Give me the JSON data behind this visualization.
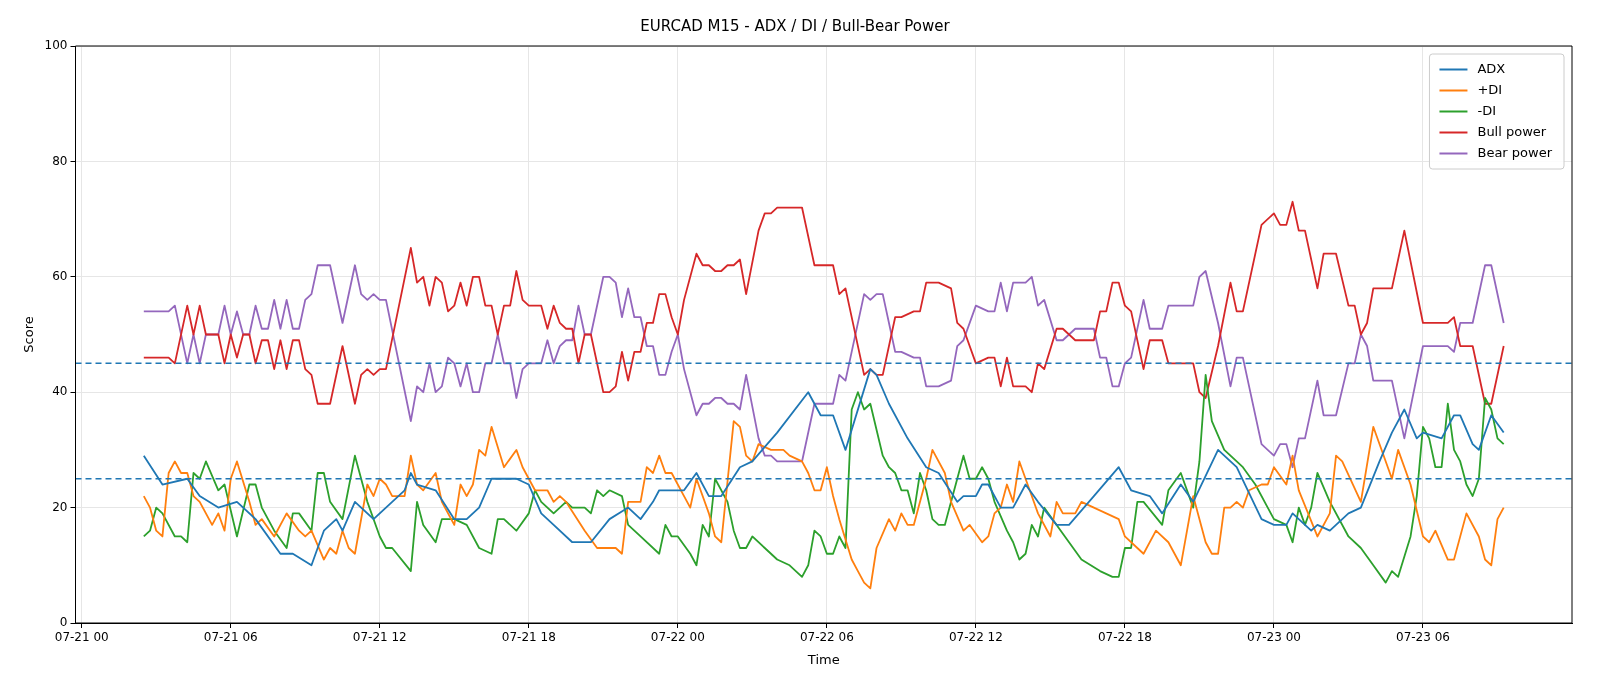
{
  "chart_data": {
    "type": "line",
    "title": "EURCAD M15 - ADX / DI / Bull-Bear Power",
    "xlabel": "Time",
    "ylabel": "Score",
    "xlim": [
      "--07-20T23:45",
      "--07-23T12:00"
    ],
    "xticks": [
      {
        "value": "--07-21T00:00",
        "label": "07-21 00"
      },
      {
        "value": "--07-21T06:00",
        "label": "07-21 06"
      },
      {
        "value": "--07-21T12:00",
        "label": "07-21 12"
      },
      {
        "value": "--07-21T18:00",
        "label": "07-21 18"
      },
      {
        "value": "--07-22T00:00",
        "label": "07-22 00"
      },
      {
        "value": "--07-22T06:00",
        "label": "07-22 06"
      },
      {
        "value": "--07-22T12:00",
        "label": "07-22 12"
      },
      {
        "value": "--07-22T18:00",
        "label": "07-22 18"
      },
      {
        "value": "--07-23T00:00",
        "label": "07-23 00"
      },
      {
        "value": "--07-23T06:00",
        "label": "07-23 06"
      }
    ],
    "ylim": [
      0,
      100
    ],
    "yticks": [
      0,
      20,
      40,
      60,
      80,
      100
    ],
    "grid": true,
    "legend": "top right",
    "marker": "none",
    "line_style": "solid",
    "ref_lines": [
      {
        "axis": "y",
        "value": 45,
        "color": "#1f77b4",
        "line_style": "dashed"
      },
      {
        "axis": "y",
        "value": 25,
        "color": "#1f77b4",
        "line_style": "dashed"
      }
    ],
    "x": [
      "--07-21T02:30",
      "--07-21T03:00",
      "--07-21T03:15",
      "--07-21T03:30",
      "--07-21T03:45",
      "--07-21T04:15",
      "--07-21T04:30",
      "--07-21T04:45",
      "--07-21T05:00",
      "--07-21T05:30",
      "--07-21T05:45",
      "--07-21T06:00",
      "--07-21T06:15",
      "--07-21T06:30",
      "--07-21T06:45",
      "--07-21T07:00",
      "--07-21T07:15",
      "--07-21T07:30",
      "--07-21T07:45",
      "--07-21T08:00",
      "--07-21T08:15",
      "--07-21T08:30",
      "--07-21T08:45",
      "--07-21T09:00",
      "--07-21T09:15",
      "--07-21T09:30",
      "--07-21T10:00",
      "--07-21T10:30",
      "--07-21T11:00",
      "--07-21T11:15",
      "--07-21T11:30",
      "--07-21T11:45",
      "--07-21T12:00",
      "--07-21T12:15",
      "--07-21T13:15",
      "--07-21T13:30",
      "--07-21T13:45",
      "--07-21T14:00",
      "--07-21T14:15",
      "--07-21T14:30",
      "--07-21T14:45",
      "--07-21T15:00",
      "--07-21T15:15",
      "--07-21T15:30",
      "--07-21T15:45",
      "--07-21T16:00",
      "--07-21T16:15",
      "--07-21T16:30",
      "--07-21T16:45",
      "--07-21T17:00",
      "--07-21T17:15",
      "--07-21T17:30",
      "--07-21T17:45",
      "--07-21T18:00",
      "--07-21T18:30",
      "--07-21T18:45",
      "--07-21T19:00",
      "--07-21T19:15",
      "--07-21T19:30",
      "--07-21T19:45",
      "--07-21T20:00",
      "--07-21T20:15",
      "--07-21T20:30",
      "--07-21T21:00",
      "--07-21T21:15",
      "--07-21T21:30",
      "--07-21T21:45",
      "--07-21T22:00",
      "--07-21T22:15",
      "--07-21T22:30",
      "--07-21T22:45",
      "--07-21T23:00",
      "--07-21T23:15",
      "--07-21T23:30",
      "--07-21T23:45",
      "--07-22T00:00",
      "--07-22T00:15",
      "--07-22T00:45",
      "--07-22T01:00",
      "--07-22T01:15",
      "--07-22T01:30",
      "--07-22T01:45",
      "--07-22T02:00",
      "--07-22T02:15",
      "--07-22T02:30",
      "--07-22T02:45",
      "--07-22T03:15",
      "--07-22T03:30",
      "--07-22T03:45",
      "--07-22T04:00",
      "--07-22T04:15",
      "--07-22T04:30",
      "--07-22T04:45",
      "--07-22T05:00",
      "--07-22T05:30",
      "--07-22T06:15",
      "--07-22T06:30",
      "--07-22T06:45",
      "--07-22T07:30",
      "--07-22T07:45",
      "--07-22T08:00",
      "--07-22T08:15",
      "--07-22T08:45",
      "--07-22T09:00",
      "--07-22T09:30",
      "--07-22T09:45",
      "--07-22T10:00",
      "--07-22T10:30",
      "--07-22T11:00",
      "--07-22T11:15",
      "--07-22T11:30",
      "--07-22T12:00",
      "--07-22T12:30",
      "--07-22T12:45",
      "--07-22T13:00",
      "--07-22T13:15",
      "--07-22T13:30",
      "--07-22T14:00",
      "--07-22T14:15",
      "--07-22T14:30",
      "--07-22T14:45",
      "--07-22T15:15",
      "--07-22T15:30",
      "--07-22T15:45",
      "--07-22T16:00",
      "--07-22T16:15",
      "--07-22T16:30",
      "--07-22T16:45",
      "--07-22T17:00",
      "--07-22T17:15",
      "--07-22T17:30",
      "--07-22T17:45",
      "--07-22T18:00",
      "--07-22T18:15",
      "--07-22T18:45",
      "--07-22T19:00",
      "--07-22T19:30",
      "--07-22T19:45",
      "--07-22T20:15",
      "--07-22T20:30",
      "--07-22T20:45",
      "--07-22T21:00",
      "--07-22T21:15",
      "--07-22T21:45",
      "--07-22T22:15",
      "--07-22T22:30",
      "--07-22T22:45",
      "--07-22T23:30",
      "--07-23T00:00",
      "--07-23T00:15",
      "--07-23T00:30",
      "--07-23T00:45",
      "--07-23T01:00",
      "--07-23T01:15",
      "--07-23T01:45",
      "--07-23T02:00",
      "--07-23T02:15",
      "--07-23T02:30",
      "--07-23T03:00",
      "--07-23T03:15",
      "--07-23T03:30",
      "--07-23T03:45",
      "--07-23T04:00",
      "--07-23T04:45",
      "--07-23T05:15",
      "--07-23T06:00",
      "--07-23T06:30",
      "--07-23T06:45",
      "--07-23T07:00",
      "--07-23T07:15",
      "--07-23T07:30",
      "--07-23T08:00",
      "--07-23T08:30",
      "--07-23T08:45",
      "--07-23T09:15"
    ],
    "series": [
      {
        "name": "ADX",
        "color": "#1f77b4",
        "x": [
          "--07-21T02:30",
          "--07-21T03:15",
          "--07-21T04:15",
          "--07-21T04:45",
          "--07-21T05:30",
          "--07-21T06:15",
          "--07-21T07:00",
          "--07-21T08:00",
          "--07-21T08:30",
          "--07-21T09:15",
          "--07-21T09:45",
          "--07-21T10:15",
          "--07-21T10:30",
          "--07-21T11:00",
          "--07-21T11:45",
          "--07-21T12:15",
          "--07-21T13:00",
          "--07-21T13:15",
          "--07-21T13:30",
          "--07-21T14:15",
          "--07-21T15:00",
          "--07-21T15:30",
          "--07-21T16:00",
          "--07-21T16:30",
          "--07-21T17:00",
          "--07-21T17:30",
          "--07-21T18:00",
          "--07-21T18:30",
          "--07-21T19:00",
          "--07-21T19:45",
          "--07-21T20:30",
          "--07-21T21:15",
          "--07-21T22:00",
          "--07-21T22:30",
          "--07-21T23:00",
          "--07-21T23:15",
          "--07-22T00:15",
          "--07-22T00:45",
          "--07-22T01:15",
          "--07-22T01:45",
          "--07-22T02:30",
          "--07-22T03:00",
          "--07-22T04:00",
          "--07-22T05:15",
          "--07-22T05:45",
          "--07-22T06:15",
          "--07-22T06:45",
          "--07-22T07:45",
          "--07-22T08:00",
          "--07-22T08:30",
          "--07-22T09:15",
          "--07-22T10:00",
          "--07-22T10:30",
          "--07-22T11:15",
          "--07-22T11:30",
          "--07-22T12:00",
          "--07-22T12:15",
          "--07-22T12:30",
          "--07-22T13:00",
          "--07-22T13:30",
          "--07-22T14:00",
          "--07-22T14:30",
          "--07-22T15:15",
          "--07-22T15:45",
          "--07-22T16:45",
          "--07-22T17:45",
          "--07-22T18:15",
          "--07-22T19:00",
          "--07-22T19:30",
          "--07-22T20:15",
          "--07-22T20:45",
          "--07-22T21:45",
          "--07-22T22:30",
          "--07-22T23:30",
          "--07-23T00:00",
          "--07-23T00:30",
          "--07-23T00:45",
          "--07-23T01:30",
          "--07-23T01:45",
          "--07-23T02:15",
          "--07-23T03:00",
          "--07-23T03:30",
          "--07-23T04:15",
          "--07-23T04:45",
          "--07-23T05:15",
          "--07-23T05:45",
          "--07-23T06:00",
          "--07-23T06:45",
          "--07-23T07:15",
          "--07-23T07:30",
          "--07-23T08:00",
          "--07-23T08:15",
          "--07-23T08:45",
          "--07-23T09:15"
        ],
        "values": [
          29,
          24,
          25,
          22,
          20,
          21,
          18,
          12,
          12,
          10,
          16,
          18,
          16,
          21,
          18,
          20,
          23,
          26,
          24,
          23,
          18,
          18,
          20,
          25,
          25,
          25,
          24,
          19,
          17,
          14,
          14,
          18,
          20,
          18,
          21,
          23,
          23,
          26,
          22,
          22,
          27,
          28,
          33,
          40,
          36,
          36,
          30,
          44,
          43,
          38,
          32,
          27,
          26,
          21,
          22,
          22,
          24,
          24,
          20,
          20,
          24,
          21,
          17,
          17,
          22,
          27,
          23,
          22,
          19,
          24,
          21,
          30,
          27,
          18,
          17,
          17,
          19,
          16,
          17,
          16,
          19,
          20,
          28,
          33,
          37,
          32,
          33,
          32,
          36,
          36,
          31,
          30,
          36,
          33
        ]
      },
      {
        "name": "+DI",
        "color": "#ff7f0e",
        "x": [
          "--07-21T02:30",
          "--07-21T02:45",
          "--07-21T03:00",
          "--07-21T03:15",
          "--07-21T03:30",
          "--07-21T03:45",
          "--07-21T04:00",
          "--07-21T04:15",
          "--07-21T04:30",
          "--07-21T04:45",
          "--07-21T05:15",
          "--07-21T05:30",
          "--07-21T05:45",
          "--07-21T06:00",
          "--07-21T06:15",
          "--07-21T06:45",
          "--07-21T07:00",
          "--07-21T07:15",
          "--07-21T07:45",
          "--07-21T08:15",
          "--07-21T08:45",
          "--07-21T09:00",
          "--07-21T09:15",
          "--07-21T09:45",
          "--07-21T10:00",
          "--07-21T10:15",
          "--07-21T10:30",
          "--07-21T10:45",
          "--07-21T11:00",
          "--07-21T11:30",
          "--07-21T11:45",
          "--07-21T12:00",
          "--07-21T12:15",
          "--07-21T12:30",
          "--07-21T13:00",
          "--07-21T13:15",
          "--07-21T13:30",
          "--07-21T13:45",
          "--07-21T14:15",
          "--07-21T14:30",
          "--07-21T15:00",
          "--07-21T15:15",
          "--07-21T15:30",
          "--07-21T15:45",
          "--07-21T16:00",
          "--07-21T16:15",
          "--07-21T16:30",
          "--07-21T17:00",
          "--07-21T17:30",
          "--07-21T17:45",
          "--07-21T18:15",
          "--07-21T18:45",
          "--07-21T19:00",
          "--07-21T19:15",
          "--07-21T19:30",
          "--07-21T20:15",
          "--07-21T20:45",
          "--07-21T21:15",
          "--07-21T21:30",
          "--07-21T21:45",
          "--07-21T22:00",
          "--07-21T22:15",
          "--07-21T22:30",
          "--07-21T22:45",
          "--07-21T23:00",
          "--07-21T23:15",
          "--07-21T23:30",
          "--07-21T23:45",
          "--07-22T00:15",
          "--07-22T00:30",
          "--07-22T00:45",
          "--07-22T01:15",
          "--07-22T01:30",
          "--07-22T01:45",
          "--07-22T02:15",
          "--07-22T02:30",
          "--07-22T02:45",
          "--07-22T03:00",
          "--07-22T03:15",
          "--07-22T03:45",
          "--07-22T04:00",
          "--07-22T04:15",
          "--07-22T04:30",
          "--07-22T05:00",
          "--07-22T05:15",
          "--07-22T05:30",
          "--07-22T05:45",
          "--07-22T06:00",
          "--07-22T06:15",
          "--07-22T06:30",
          "--07-22T07:00",
          "--07-22T07:15",
          "--07-22T07:30",
          "--07-22T07:45",
          "--07-22T08:00",
          "--07-22T08:30",
          "--07-22T08:45",
          "--07-22T09:00",
          "--07-22T09:15",
          "--07-22T09:30",
          "--07-22T10:00",
          "--07-22T10:15",
          "--07-22T10:45",
          "--07-22T11:00",
          "--07-22T11:30",
          "--07-22T11:45",
          "--07-22T12:15",
          "--07-22T12:30",
          "--07-22T12:45",
          "--07-22T13:00",
          "--07-22T13:15",
          "--07-22T13:30",
          "--07-22T13:45",
          "--07-22T14:00",
          "--07-22T14:15",
          "--07-22T14:30",
          "--07-22T15:00",
          "--07-22T15:15",
          "--07-22T15:30",
          "--07-22T16:00",
          "--07-22T16:15",
          "--07-22T16:45",
          "--07-22T17:15",
          "--07-22T17:45",
          "--07-22T18:00",
          "--07-22T18:30",
          "--07-22T18:45",
          "--07-22T19:15",
          "--07-22T19:45",
          "--07-22T20:15",
          "--07-22T20:45",
          "--07-22T21:15",
          "--07-22T21:30",
          "--07-22T21:45",
          "--07-22T22:00",
          "--07-22T22:15",
          "--07-22T22:30",
          "--07-22T22:45",
          "--07-22T23:00",
          "--07-22T23:30",
          "--07-22T23:45",
          "--07-23T00:00",
          "--07-23T00:30",
          "--07-23T00:45",
          "--07-23T01:00",
          "--07-23T01:45",
          "--07-23T02:15",
          "--07-23T02:30",
          "--07-23T02:45",
          "--07-23T03:30",
          "--07-23T04:00",
          "--07-23T04:45",
          "--07-23T05:00",
          "--07-23T05:30",
          "--07-23T06:00",
          "--07-23T06:15",
          "--07-23T06:30",
          "--07-23T07:00",
          "--07-23T07:15",
          "--07-23T07:45",
          "--07-23T08:15",
          "--07-23T08:30",
          "--07-23T08:45",
          "--07-23T09:00",
          "--07-23T09:15"
        ],
        "values": [
          22,
          20,
          16,
          15,
          26,
          28,
          26,
          26,
          22,
          21,
          17,
          19,
          16,
          25,
          28,
          21,
          17,
          18,
          15,
          19,
          16,
          15,
          16,
          11,
          13,
          12,
          16,
          13,
          12,
          24,
          22,
          25,
          24,
          22,
          22,
          29,
          24,
          23,
          26,
          21,
          17,
          24,
          22,
          24,
          30,
          29,
          34,
          27,
          30,
          27,
          23,
          23,
          21,
          22,
          21,
          16,
          13,
          13,
          13,
          12,
          21,
          21,
          21,
          27,
          26,
          29,
          26,
          26,
          22,
          20,
          25,
          19,
          15,
          14,
          35,
          34,
          29,
          28,
          31,
          30,
          30,
          30,
          29,
          28,
          26,
          23,
          23,
          27,
          22,
          18,
          11,
          9,
          7,
          6,
          13,
          18,
          16,
          19,
          17,
          17,
          25,
          30,
          26,
          21,
          16,
          17,
          14,
          15,
          19,
          20,
          24,
          21,
          28,
          25,
          22,
          19,
          15,
          21,
          19,
          19,
          21,
          20,
          19,
          18,
          15,
          13,
          12,
          16,
          14,
          10,
          22,
          14,
          12,
          12,
          20,
          20,
          21,
          20,
          23,
          24,
          24,
          27,
          24,
          29,
          23,
          15,
          19,
          29,
          28,
          21,
          34,
          25,
          30,
          24,
          15,
          14,
          16,
          11,
          11,
          19,
          15,
          11,
          10,
          18,
          20
        ]
      },
      {
        "name": "-DI",
        "color": "#2ca02c",
        "x": [
          "--07-21T02:30",
          "--07-21T02:45",
          "--07-21T03:00",
          "--07-21T03:15",
          "--07-21T03:45",
          "--07-21T04:00",
          "--07-21T04:15",
          "--07-21T04:30",
          "--07-21T04:45",
          "--07-21T05:00",
          "--07-21T05:30",
          "--07-21T05:45",
          "--07-21T06:15",
          "--07-21T06:45",
          "--07-21T07:00",
          "--07-21T07:15",
          "--07-21T07:45",
          "--07-21T08:15",
          "--07-21T08:30",
          "--07-21T08:45",
          "--07-21T09:15",
          "--07-21T09:30",
          "--07-21T09:45",
          "--07-21T10:00",
          "--07-21T10:30",
          "--07-21T11:00",
          "--07-21T11:30",
          "--07-21T12:00",
          "--07-21T12:15",
          "--07-21T12:30",
          "--07-21T13:15",
          "--07-21T13:30",
          "--07-21T13:45",
          "--07-21T14:15",
          "--07-21T14:30",
          "--07-21T15:00",
          "--07-21T15:30",
          "--07-21T16:00",
          "--07-21T16:30",
          "--07-21T16:45",
          "--07-21T17:00",
          "--07-21T17:30",
          "--07-21T18:00",
          "--07-21T18:15",
          "--07-21T18:30",
          "--07-21T19:00",
          "--07-21T19:30",
          "--07-21T19:45",
          "--07-21T20:15",
          "--07-21T20:30",
          "--07-21T20:45",
          "--07-21T21:00",
          "--07-21T21:15",
          "--07-21T21:45",
          "--07-21T22:00",
          "--07-21T22:30",
          "--07-21T23:15",
          "--07-21T23:30",
          "--07-21T23:45",
          "--07-22T00:00",
          "--07-22T00:30",
          "--07-22T00:45",
          "--07-22T01:00",
          "--07-22T01:15",
          "--07-22T01:30",
          "--07-22T02:00",
          "--07-22T02:15",
          "--07-22T02:30",
          "--07-22T02:45",
          "--07-22T03:00",
          "--07-22T03:30",
          "--07-22T04:00",
          "--07-22T04:30",
          "--07-22T05:00",
          "--07-22T05:15",
          "--07-22T05:30",
          "--07-22T05:45",
          "--07-22T06:00",
          "--07-22T06:15",
          "--07-22T06:30",
          "--07-22T06:45",
          "--07-22T07:00",
          "--07-22T07:15",
          "--07-22T07:30",
          "--07-22T07:45",
          "--07-22T08:15",
          "--07-22T08:30",
          "--07-22T08:45",
          "--07-22T09:00",
          "--07-22T09:15",
          "--07-22T09:30",
          "--07-22T09:45",
          "--07-22T10:00",
          "--07-22T10:15",
          "--07-22T10:30",
          "--07-22T10:45",
          "--07-22T11:15",
          "--07-22T11:30",
          "--07-22T11:45",
          "--07-22T12:00",
          "--07-22T12:15",
          "--07-22T12:30",
          "--07-22T12:45",
          "--07-22T13:15",
          "--07-22T13:30",
          "--07-22T13:45",
          "--07-22T14:00",
          "--07-22T14:15",
          "--07-22T14:30",
          "--07-22T14:45",
          "--07-22T15:15",
          "--07-22T15:45",
          "--07-22T16:15",
          "--07-22T17:00",
          "--07-22T17:30",
          "--07-22T17:45",
          "--07-22T18:00",
          "--07-22T18:15",
          "--07-22T18:30",
          "--07-22T18:45",
          "--07-22T19:30",
          "--07-22T19:45",
          "--07-22T20:15",
          "--07-22T20:45",
          "--07-22T21:00",
          "--07-22T21:15",
          "--07-22T21:30",
          "--07-22T22:00",
          "--07-22T22:45",
          "--07-22T23:15",
          "--07-22T23:45",
          "--07-23T00:00",
          "--07-23T00:30",
          "--07-23T00:45",
          "--07-23T01:00",
          "--07-23T01:15",
          "--07-23T01:30",
          "--07-23T01:45",
          "--07-23T02:15",
          "--07-23T03:00",
          "--07-23T03:30",
          "--07-23T04:00",
          "--07-23T04:30",
          "--07-23T04:45",
          "--07-23T05:00",
          "--07-23T05:30",
          "--07-23T05:45",
          "--07-23T06:00",
          "--07-23T06:15",
          "--07-23T06:30",
          "--07-23T06:45",
          "--07-23T07:00",
          "--07-23T07:15",
          "--07-23T07:30",
          "--07-23T07:45",
          "--07-23T08:00",
          "--07-23T08:15",
          "--07-23T08:30",
          "--07-23T08:45",
          "--07-23T09:00",
          "--07-23T09:15"
        ],
        "values": [
          15,
          16,
          20,
          19,
          15,
          15,
          14,
          26,
          25,
          28,
          23,
          24,
          15,
          24,
          24,
          20,
          16,
          13,
          19,
          19,
          16,
          26,
          26,
          21,
          18,
          29,
          21,
          15,
          13,
          13,
          9,
          21,
          17,
          14,
          18,
          18,
          17,
          13,
          12,
          18,
          18,
          16,
          19,
          23,
          21,
          19,
          21,
          20,
          20,
          19,
          23,
          22,
          23,
          22,
          17,
          15,
          12,
          17,
          15,
          15,
          12,
          10,
          17,
          15,
          25,
          21,
          16,
          13,
          13,
          15,
          13,
          11,
          10,
          8,
          10,
          16,
          15,
          12,
          12,
          15,
          13,
          37,
          40,
          37,
          38,
          29,
          27,
          26,
          23,
          23,
          19,
          26,
          23,
          18,
          17,
          17,
          25,
          29,
          25,
          25,
          27,
          25,
          21,
          16,
          14,
          11,
          12,
          17,
          15,
          20,
          17,
          14,
          11,
          9,
          8,
          8,
          13,
          13,
          21,
          21,
          17,
          23,
          26,
          20,
          28,
          43,
          35,
          30,
          27,
          24,
          20,
          18,
          17,
          14,
          20,
          17,
          20,
          26,
          21,
          15,
          13,
          10,
          7,
          9,
          8,
          15,
          22,
          34,
          32,
          27,
          27,
          38,
          30,
          28,
          24,
          22,
          25,
          39,
          37,
          32,
          31
        ]
      },
      {
        "name": "Bull power",
        "color": "#d62728",
        "values": [
          46,
          46,
          46,
          46,
          45,
          55,
          50,
          55,
          50,
          50,
          45,
          50,
          46,
          50,
          50,
          45,
          49,
          49,
          44,
          49,
          44,
          49,
          49,
          44,
          43,
          38,
          38,
          48,
          38,
          43,
          44,
          43,
          44,
          44,
          65,
          59,
          60,
          55,
          60,
          59,
          54,
          55,
          59,
          55,
          60,
          60,
          55,
          55,
          50,
          55,
          55,
          61,
          56,
          55,
          55,
          51,
          55,
          52,
          51,
          51,
          45,
          50,
          50,
          40,
          40,
          41,
          47,
          42,
          47,
          47,
          52,
          52,
          57,
          57,
          53,
          50,
          56,
          64,
          62,
          62,
          61,
          61,
          62,
          62,
          63,
          57,
          68,
          71,
          71,
          72,
          72,
          72,
          72,
          72,
          62,
          62,
          57,
          58,
          43,
          44,
          43,
          43,
          53,
          53,
          54,
          54,
          59,
          59,
          58,
          52,
          51,
          45,
          46,
          46,
          41,
          46,
          41,
          41,
          40,
          45,
          44,
          51,
          51,
          50,
          49,
          49,
          49,
          49,
          54,
          54,
          59,
          59,
          55,
          54,
          44,
          49,
          49,
          45,
          45,
          45,
          45,
          40,
          39,
          48,
          59,
          54,
          54,
          69,
          71,
          69,
          69,
          73,
          68,
          68,
          58,
          64,
          64,
          64,
          55,
          55,
          50,
          52,
          58,
          58,
          68,
          52,
          52,
          52,
          52,
          53,
          48,
          48,
          38,
          38,
          48
        ]
      },
      {
        "name": "Bear power",
        "color": "#9467bd",
        "values": [
          54,
          54,
          54,
          54,
          55,
          45,
          50,
          45,
          50,
          50,
          55,
          50,
          54,
          50,
          50,
          55,
          51,
          51,
          56,
          51,
          56,
          51,
          51,
          56,
          57,
          62,
          62,
          52,
          62,
          57,
          56,
          57,
          56,
          56,
          35,
          41,
          40,
          45,
          40,
          41,
          46,
          45,
          41,
          45,
          40,
          40,
          45,
          45,
          50,
          45,
          45,
          39,
          44,
          45,
          45,
          49,
          45,
          48,
          49,
          49,
          55,
          50,
          50,
          60,
          60,
          59,
          53,
          58,
          53,
          53,
          48,
          48,
          43,
          43,
          47,
          50,
          44,
          36,
          38,
          38,
          39,
          39,
          38,
          38,
          37,
          43,
          32,
          29,
          29,
          28,
          28,
          28,
          28,
          28,
          38,
          38,
          43,
          42,
          57,
          56,
          57,
          57,
          47,
          47,
          46,
          46,
          41,
          41,
          42,
          48,
          49,
          55,
          54,
          54,
          59,
          54,
          59,
          59,
          60,
          55,
          56,
          49,
          49,
          50,
          51,
          51,
          51,
          51,
          46,
          46,
          41,
          41,
          45,
          46,
          56,
          51,
          51,
          55,
          55,
          55,
          55,
          60,
          61,
          52,
          41,
          46,
          46,
          31,
          29,
          31,
          31,
          27,
          32,
          32,
          42,
          36,
          36,
          36,
          45,
          45,
          50,
          48,
          42,
          42,
          32,
          48,
          48,
          48,
          48,
          47,
          52,
          52,
          62,
          62,
          52
        ]
      }
    ]
  }
}
